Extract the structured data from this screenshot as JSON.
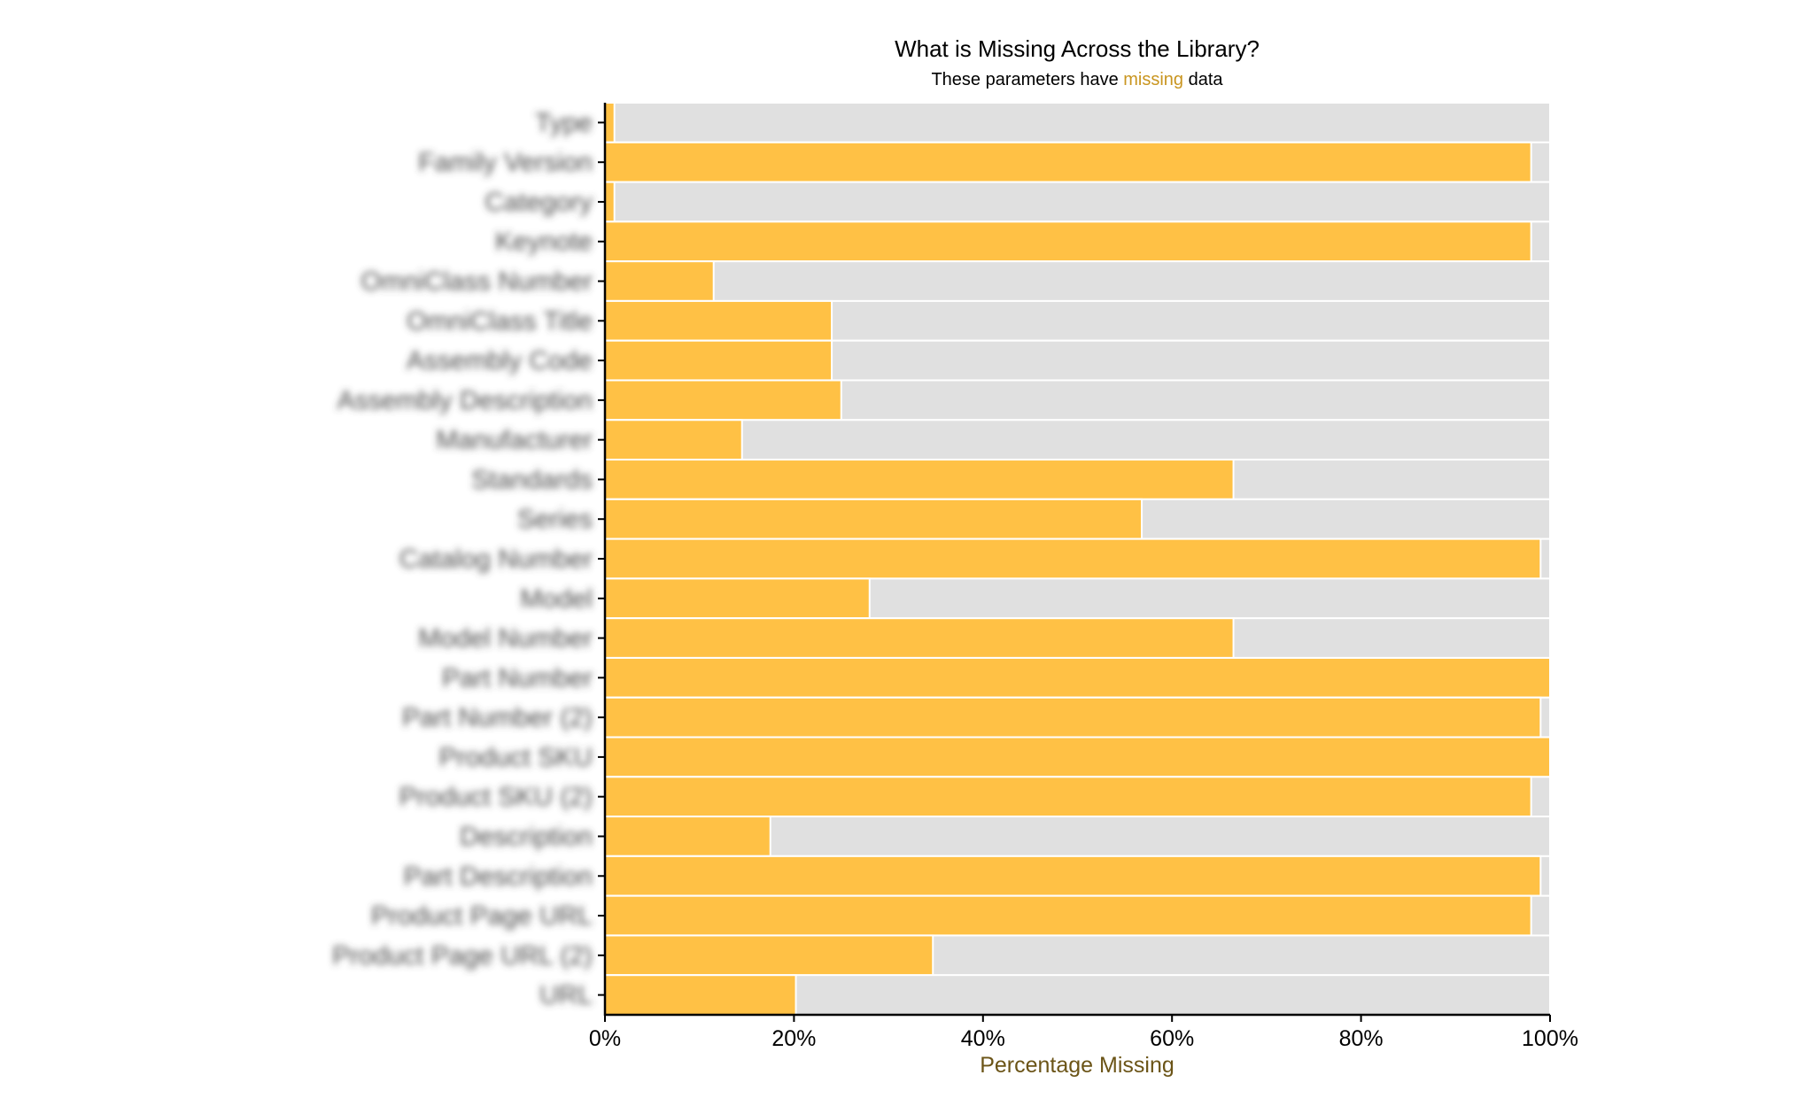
{
  "chart_data": {
    "type": "bar",
    "orientation": "horizontal",
    "stacked": true,
    "title": "What is Missing Across the Library?",
    "subtitle": {
      "prefix": "These parameters have ",
      "highlight": "missing",
      "suffix": " data"
    },
    "xlabel": "Percentage Missing",
    "ylabel": "",
    "xlim": [
      0,
      100
    ],
    "x_ticks": [
      0,
      20,
      40,
      60,
      80,
      100
    ],
    "x_tick_labels": [
      "0%",
      "20%",
      "40%",
      "60%",
      "80%",
      "100%"
    ],
    "categories": [
      "Type",
      "Family Version",
      "Category",
      "Keynote",
      "OmniClass Number",
      "OmniClass Title",
      "Assembly Code",
      "Assembly Description",
      "Manufacturer",
      "Standards",
      "Series",
      "Catalog Number",
      "Model",
      "Model Number",
      "Part Number",
      "Part Number (2)",
      "Product SKU",
      "Product SKU (2)",
      "Description",
      "Part Description",
      "Product Page URL",
      "Product Page URL (2)",
      "URL"
    ],
    "labels_blurred": true,
    "series": [
      {
        "name": "missing",
        "values": [
          1,
          98,
          1,
          98,
          11.5,
          24,
          24,
          25,
          14.5,
          66.5,
          56.8,
          99,
          28,
          66.5,
          100,
          99,
          100,
          98,
          17.5,
          99,
          98,
          34.7,
          20.2
        ]
      }
    ],
    "colors": {
      "missing": "#FFC145",
      "present": "#E0E0E0",
      "accent_text": "#6B5417",
      "axis": "#000000"
    },
    "grid": false,
    "legend": "none"
  }
}
